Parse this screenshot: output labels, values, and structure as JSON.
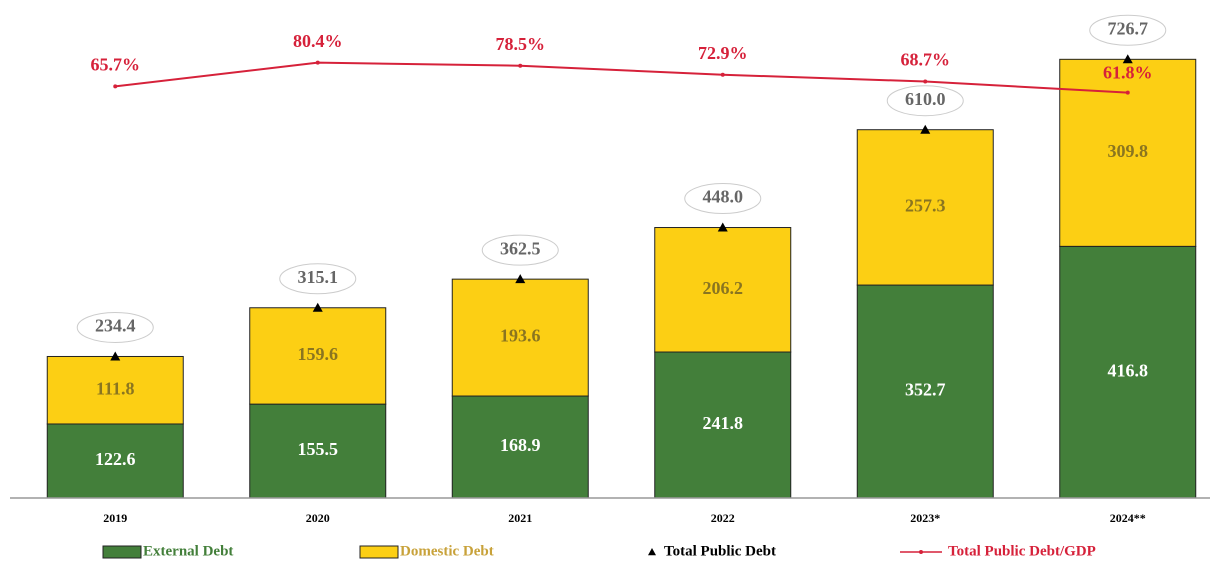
{
  "chart_data": {
    "type": "bar",
    "stacked": true,
    "categories": [
      "2019",
      "2020",
      "2021",
      "2022",
      "2023*",
      "2024**"
    ],
    "ylim": [
      0,
      800
    ],
    "y2lim": [
      -190,
      110
    ],
    "grid": false,
    "series": [
      {
        "name": "External Debt",
        "type": "bar",
        "color": "#437f3a",
        "values": [
          122.6,
          155.5,
          168.9,
          241.8,
          352.7,
          416.8
        ]
      },
      {
        "name": "Domestic Debt",
        "type": "bar",
        "color": "#fccf14",
        "values": [
          111.8,
          159.6,
          193.6,
          206.2,
          257.3,
          309.8
        ]
      },
      {
        "name": "Total Public Debt",
        "type": "marker",
        "color": "#000000",
        "values": [
          234.4,
          315.1,
          362.5,
          448.0,
          610.0,
          726.7
        ],
        "value_labels": [
          "234.4",
          "315.1",
          "362.5",
          "448.0",
          "610.0",
          "726.7"
        ]
      },
      {
        "name": "Total Public Debt/GDP",
        "type": "line",
        "axis": "y2",
        "color": "#d6213a",
        "values": [
          65.7,
          80.4,
          78.5,
          72.9,
          68.7,
          61.8
        ],
        "value_labels": [
          "65.7%",
          "80.4%",
          "78.5%",
          "72.9%",
          "68.7%",
          "61.8%"
        ]
      }
    ]
  }
}
